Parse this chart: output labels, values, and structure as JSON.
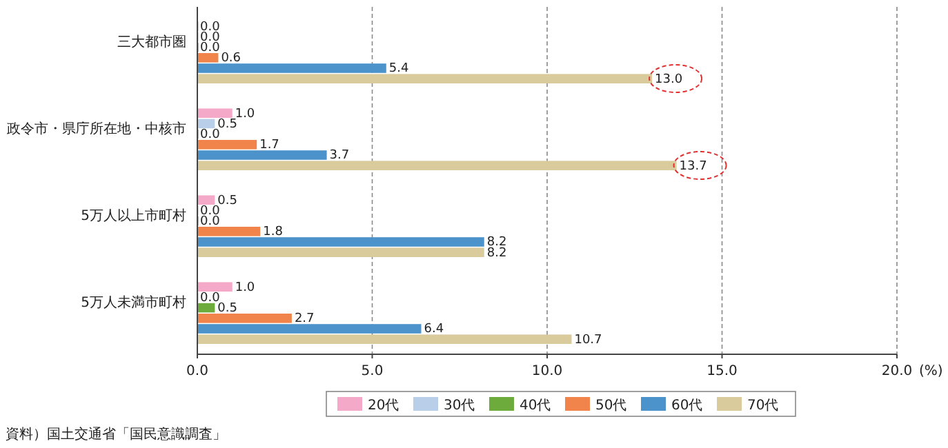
{
  "chart_data": {
    "type": "bar",
    "orientation": "horizontal",
    "categories": [
      "三大都市圏",
      "政令市・県庁所在地・中核市",
      "5万人以上市町村",
      "5万人未満市町村"
    ],
    "series": [
      {
        "name": "20代",
        "color": "#f4a9c9",
        "values": [
          0.0,
          1.0,
          0.5,
          1.0
        ],
        "value_labels": [
          "0.0",
          "1.0",
          "0.5",
          "1.0"
        ]
      },
      {
        "name": "30代",
        "color": "#b9cfe9",
        "values": [
          0.0,
          0.5,
          0.0,
          0.0
        ],
        "value_labels": [
          "0.0",
          "0.5",
          "0.0",
          "0.0"
        ]
      },
      {
        "name": "40代",
        "color": "#6cab3c",
        "values": [
          0.0,
          0.0,
          0.0,
          0.5
        ],
        "value_labels": [
          "0.0",
          "0.0",
          "0.0",
          "0.5"
        ]
      },
      {
        "name": "50代",
        "color": "#f0844a",
        "values": [
          0.6,
          1.7,
          1.8,
          2.7
        ],
        "value_labels": [
          "0.6",
          "1.7",
          "1.8",
          "2.7"
        ]
      },
      {
        "name": "60代",
        "color": "#4c93cb",
        "values": [
          5.4,
          3.7,
          8.2,
          6.4
        ],
        "value_labels": [
          "5.4",
          "3.7",
          "8.2",
          "6.4"
        ]
      },
      {
        "name": "70代",
        "color": "#d9cb9c",
        "values": [
          13.0,
          13.7,
          8.2,
          10.7
        ],
        "value_labels": [
          "13.0",
          "13.7",
          "8.2",
          "10.7"
        ]
      }
    ],
    "xlim": [
      0,
      20
    ],
    "xticks": [
      {
        "value": 0,
        "label": "0.0"
      },
      {
        "value": 5,
        "label": "5.0"
      },
      {
        "value": 10,
        "label": "10.0"
      },
      {
        "value": 15,
        "label": "15.0"
      },
      {
        "value": 20,
        "label": "20.0"
      }
    ],
    "xlabel": "(%)",
    "grid": "x",
    "legend": "bottom",
    "annotations": [
      "資料）国土交通省「国民意識調査」"
    ]
  }
}
